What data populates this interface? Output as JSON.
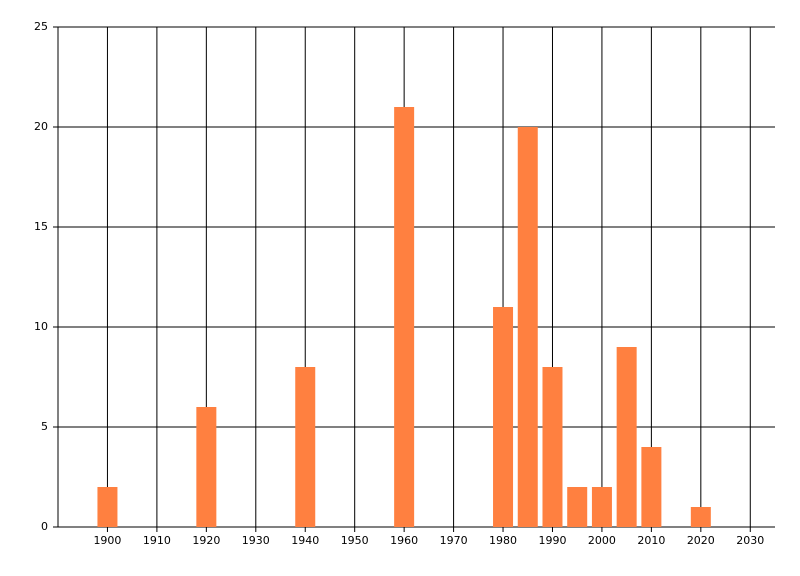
{
  "chart_data": {
    "type": "bar",
    "x": [
      1900,
      1920,
      1940,
      1960,
      1980,
      1985,
      1990,
      1995,
      2000,
      2005,
      2010,
      2020
    ],
    "values": [
      2,
      6,
      8,
      21,
      11,
      20,
      8,
      2,
      2,
      9,
      4,
      1
    ],
    "color": "#ff8040",
    "xlim": [
      1890,
      2035
    ],
    "xticks": [
      1900,
      1910,
      1920,
      1930,
      1940,
      1950,
      1960,
      1970,
      1980,
      1990,
      2000,
      2010,
      2020,
      2030
    ],
    "ylim": [
      0,
      25
    ],
    "yticks": [
      0,
      5,
      10,
      15,
      20,
      25
    ],
    "grid": true
  }
}
